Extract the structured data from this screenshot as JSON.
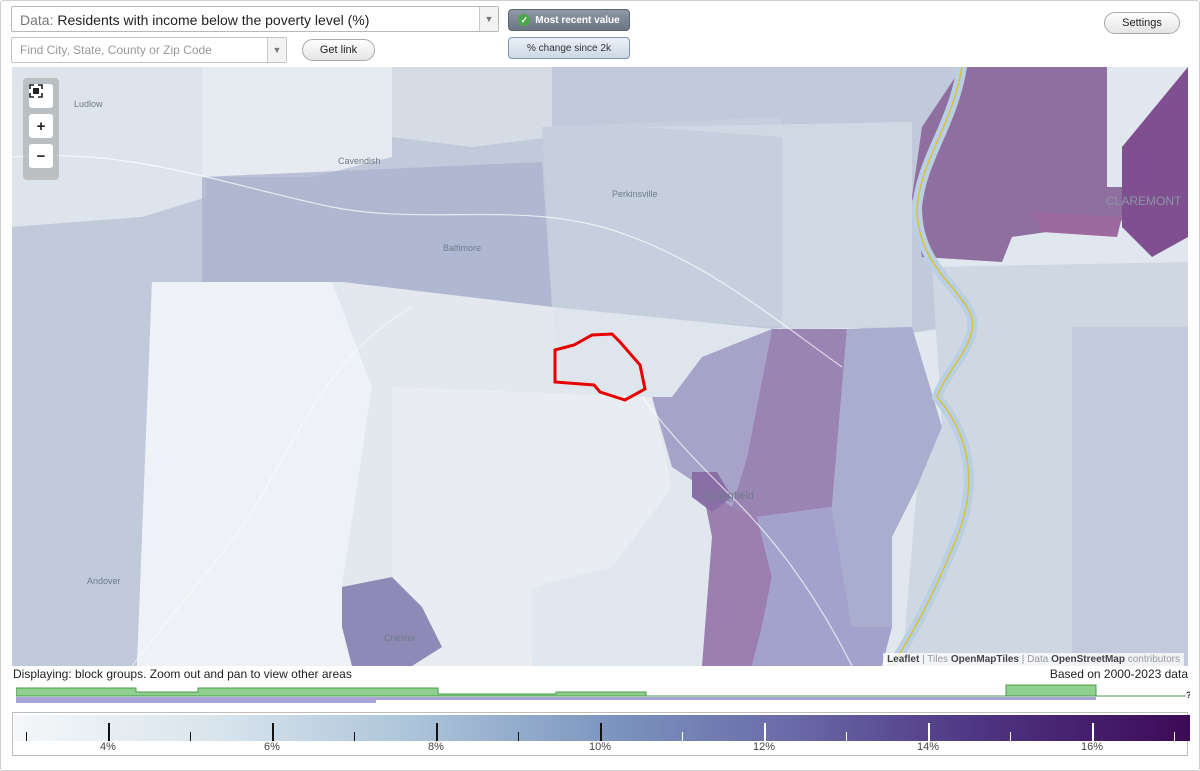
{
  "data_select": {
    "prefix": "Data:",
    "value": "Residents with income below the poverty level (%)"
  },
  "search": {
    "placeholder": "Find City, State, County or Zip Code"
  },
  "buttons": {
    "get_link": "Get link",
    "settings": "Settings"
  },
  "view_toggle": {
    "active": "Most recent value",
    "inactive": "% change since 2k"
  },
  "map": {
    "place_labels": [
      "Ludlow",
      "Cavendish",
      "Perkinsville",
      "Baltimore",
      "CLAREMONT",
      "Springfield",
      "Andover",
      "Chester"
    ],
    "attribution": {
      "leaflet": "Leaflet",
      "tiles_prefix": "Tiles",
      "tiles": "OpenMapTiles",
      "data_prefix": "Data",
      "data": "OpenStreetMap",
      "suffix": "contributors"
    },
    "icons": {
      "fullscreen": "fullscreen-icon",
      "zoom_in": "plus-icon",
      "zoom_out": "minus-icon"
    }
  },
  "status": {
    "displaying": "Displaying: block groups. Zoom out and pan to view other areas",
    "based_on": "Based on 2000-2023 data"
  },
  "legend": {
    "tick_labels": [
      "4%",
      "6%",
      "8%",
      "10%",
      "12%",
      "14%",
      "16%"
    ],
    "help": "?",
    "colors": {
      "low": "#f5f7f9",
      "mid": "#7a91bd",
      "high": "#3d0a57",
      "selection": "#e80000",
      "river_border": "#d9c23a",
      "histogram": "#8fcf8f"
    }
  }
}
